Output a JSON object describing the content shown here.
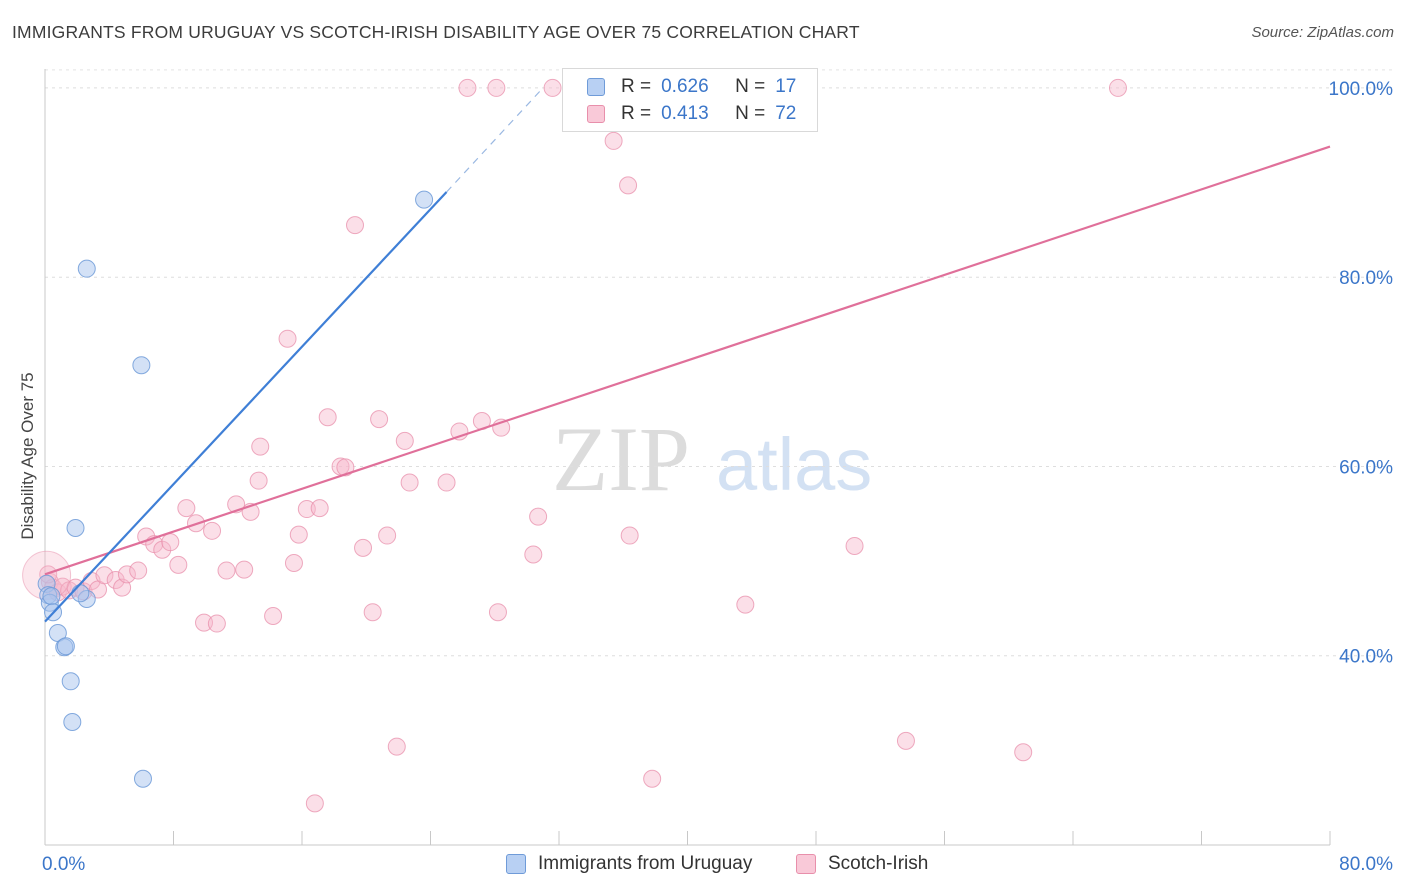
{
  "title": "IMMIGRANTS FROM URUGUAY VS SCOTCH-IRISH DISABILITY AGE OVER 75 CORRELATION CHART",
  "source": "Source: ZipAtlas.com",
  "watermark": {
    "zip": "ZIP",
    "atlas": "atlas"
  },
  "legend": {
    "r_label": "R =",
    "n_label": "N =",
    "rows": [
      {
        "r": "0.626",
        "n": "17"
      },
      {
        "r": "0.413",
        "n": "72"
      }
    ]
  },
  "colors": {
    "blue_fill": "#a8c4ee",
    "blue_stroke": "#6f9bd8",
    "blue_line": "#3f7fd6",
    "pink_fill": "#f6b9cc",
    "pink_stroke": "#e88fab",
    "pink_line": "#e0709a",
    "tick_text": "#3b76c9"
  },
  "chart_data": {
    "type": "scatter",
    "title": "IMMIGRANTS FROM URUGUAY VS SCOTCH-IRISH DISABILITY AGE OVER 75 CORRELATION CHART",
    "xlabel": "",
    "ylabel": "Disability Age Over 75",
    "xlim": [
      0,
      80
    ],
    "ylim": [
      20,
      102
    ],
    "x_tick_labels": [
      "0.0%",
      "80.0%"
    ],
    "y_ticks": [
      40,
      60,
      80,
      100
    ],
    "y_tick_labels": [
      "40.0%",
      "60.0%",
      "80.0%",
      "100.0%"
    ],
    "grid": true,
    "legend_position": "top-center",
    "series": [
      {
        "name": "Immigrants from Uruguay",
        "color": "#a8c4ee",
        "r": 0.626,
        "n": 17,
        "points": [
          [
            0.1,
            47.6
          ],
          [
            0.2,
            46.4
          ],
          [
            0.3,
            45.6
          ],
          [
            0.4,
            46.3
          ],
          [
            0.5,
            44.6
          ],
          [
            0.8,
            42.4
          ],
          [
            1.2,
            40.9
          ],
          [
            1.3,
            41.0
          ],
          [
            1.6,
            37.3
          ],
          [
            1.7,
            33.0
          ],
          [
            1.9,
            53.5
          ],
          [
            2.6,
            46.0
          ],
          [
            2.6,
            80.9
          ],
          [
            6.0,
            70.7
          ],
          [
            6.1,
            27.0
          ],
          [
            23.6,
            88.2
          ],
          [
            2.2,
            46.6
          ]
        ],
        "trend": {
          "x1": 0.0,
          "y1": 43.6,
          "x2": 25.0,
          "y2": 89.0,
          "dash_to_x": 31.0,
          "dash_to_y": 100.0
        }
      },
      {
        "name": "Scotch-Irish",
        "color": "#f6b9cc",
        "r": 0.413,
        "n": 72,
        "points": [
          [
            0.3,
            47.8
          ],
          [
            0.5,
            47.2
          ],
          [
            0.8,
            46.7
          ],
          [
            1.1,
            47.3
          ],
          [
            1.5,
            46.9
          ],
          [
            1.9,
            47.2
          ],
          [
            2.4,
            46.8
          ],
          [
            2.9,
            47.9
          ],
          [
            3.3,
            47.0
          ],
          [
            3.7,
            48.5
          ],
          [
            4.4,
            48.0
          ],
          [
            4.8,
            47.2
          ],
          [
            5.1,
            48.6
          ],
          [
            5.8,
            49.0
          ],
          [
            6.3,
            52.6
          ],
          [
            6.8,
            51.8
          ],
          [
            7.3,
            51.2
          ],
          [
            7.8,
            52.0
          ],
          [
            8.3,
            49.6
          ],
          [
            8.8,
            55.6
          ],
          [
            9.4,
            54.0
          ],
          [
            9.9,
            43.5
          ],
          [
            10.4,
            53.2
          ],
          [
            10.7,
            43.4
          ],
          [
            11.3,
            49.0
          ],
          [
            11.9,
            56.0
          ],
          [
            12.4,
            49.1
          ],
          [
            12.8,
            55.2
          ],
          [
            13.3,
            58.5
          ],
          [
            13.4,
            62.1
          ],
          [
            14.2,
            44.2
          ],
          [
            15.1,
            73.5
          ],
          [
            15.5,
            49.8
          ],
          [
            15.8,
            52.8
          ],
          [
            16.3,
            55.5
          ],
          [
            16.8,
            24.4
          ],
          [
            17.1,
            55.6
          ],
          [
            17.6,
            65.2
          ],
          [
            18.4,
            60.0
          ],
          [
            18.7,
            59.9
          ],
          [
            19.3,
            85.5
          ],
          [
            19.8,
            51.4
          ],
          [
            20.4,
            44.6
          ],
          [
            20.8,
            65.0
          ],
          [
            21.3,
            52.7
          ],
          [
            21.9,
            30.4
          ],
          [
            22.4,
            62.7
          ],
          [
            22.7,
            58.3
          ],
          [
            25.0,
            58.3
          ],
          [
            25.8,
            63.7
          ],
          [
            26.3,
            100.0
          ],
          [
            27.2,
            64.8
          ],
          [
            28.1,
            100.0
          ],
          [
            28.2,
            44.6
          ],
          [
            28.4,
            64.1
          ],
          [
            30.4,
            50.7
          ],
          [
            30.7,
            54.7
          ],
          [
            31.6,
            100.0
          ],
          [
            35.4,
            94.4
          ],
          [
            36.3,
            89.7
          ],
          [
            36.4,
            52.7
          ],
          [
            37.8,
            27.0
          ],
          [
            38.1,
            100.0
          ],
          [
            38.3,
            100.0
          ],
          [
            40.1,
            100.0
          ],
          [
            42.6,
            100.0
          ],
          [
            43.6,
            45.4
          ],
          [
            50.4,
            51.6
          ],
          [
            53.6,
            31.0
          ],
          [
            60.9,
            29.8
          ],
          [
            66.8,
            100.0
          ],
          [
            0.2,
            48.6
          ]
        ],
        "trend": {
          "x1": 0.0,
          "y1": 48.6,
          "x2": 80.0,
          "y2": 93.8
        }
      }
    ]
  }
}
